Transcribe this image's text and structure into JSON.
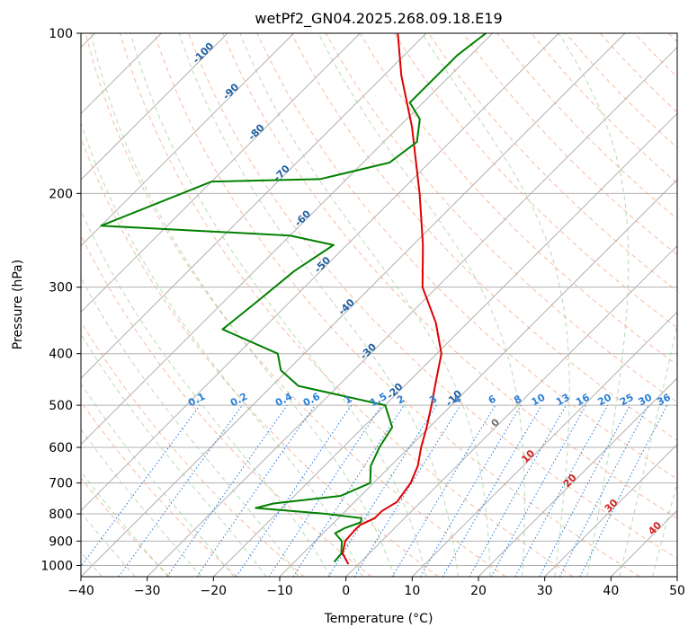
{
  "chart_data": {
    "type": "line",
    "title": "wetPf2_GN04.2025.268.09.18.E19",
    "xlabel": "Temperature (°C)",
    "ylabel": "Pressure (hPa)",
    "xlim": [
      -40,
      50
    ],
    "ylim": [
      1050,
      100
    ],
    "y_scale": "log",
    "skew": true,
    "grid": true,
    "x_ticks": [
      "−40",
      "−30",
      "−20",
      "−10",
      "0",
      "10",
      "20",
      "30",
      "40",
      "50"
    ],
    "y_ticks": [
      "100",
      "200",
      "300",
      "400",
      "500",
      "600",
      "700",
      "800",
      "900",
      "1000"
    ],
    "series": [
      {
        "color": "#e00000",
        "points": [
          {
            "p": 995,
            "t": -1.5
          },
          {
            "p": 950,
            "t": -4.0
          },
          {
            "p": 900,
            "t": -5.5
          },
          {
            "p": 860,
            "t": -5.7
          },
          {
            "p": 840,
            "t": -5.7
          },
          {
            "p": 815,
            "t": -4.5
          },
          {
            "p": 790,
            "t": -4.5
          },
          {
            "p": 760,
            "t": -3.6
          },
          {
            "p": 700,
            "t": -4.4
          },
          {
            "p": 650,
            "t": -5.9
          },
          {
            "p": 600,
            "t": -8.2
          },
          {
            "p": 550,
            "t": -10.4
          },
          {
            "p": 500,
            "t": -13.0
          },
          {
            "p": 450,
            "t": -16.0
          },
          {
            "p": 400,
            "t": -19.3
          },
          {
            "p": 350,
            "t": -24.8
          },
          {
            "p": 300,
            "t": -32.2
          },
          {
            "p": 250,
            "t": -38.5
          },
          {
            "p": 200,
            "t": -46.8
          },
          {
            "p": 150,
            "t": -58.0
          },
          {
            "p": 120,
            "t": -67.4
          },
          {
            "p": 100,
            "t": -74.3
          }
        ]
      },
      {
        "color": "#008000",
        "points": [
          {
            "p": 985,
            "t": -4.0
          },
          {
            "p": 950,
            "t": -4.2
          },
          {
            "p": 900,
            "t": -6.0
          },
          {
            "p": 870,
            "t": -8.2
          },
          {
            "p": 850,
            "t": -7.5
          },
          {
            "p": 830,
            "t": -6.0
          },
          {
            "p": 815,
            "t": -6.5
          },
          {
            "p": 800,
            "t": -12.5
          },
          {
            "p": 780,
            "t": -24.0
          },
          {
            "p": 765,
            "t": -22.0
          },
          {
            "p": 740,
            "t": -13.0
          },
          {
            "p": 700,
            "t": -10.5
          },
          {
            "p": 650,
            "t": -13.0
          },
          {
            "p": 600,
            "t": -14.5
          },
          {
            "p": 550,
            "t": -15.6
          },
          {
            "p": 500,
            "t": -20.0
          },
          {
            "p": 460,
            "t": -36.0
          },
          {
            "p": 430,
            "t": -41.0
          },
          {
            "p": 400,
            "t": -44.0
          },
          {
            "p": 360,
            "t": -56.0
          },
          {
            "p": 320,
            "t": -55.0
          },
          {
            "p": 280,
            "t": -54.0
          },
          {
            "p": 250,
            "t": -52.0
          },
          {
            "p": 240,
            "t": -60.0
          },
          {
            "p": 230,
            "t": -90.0
          },
          {
            "p": 190,
            "t": -80.0
          },
          {
            "p": 188,
            "t": -64.0
          },
          {
            "p": 175,
            "t": -56.0
          },
          {
            "p": 160,
            "t": -55.0
          },
          {
            "p": 145,
            "t": -58.0
          },
          {
            "p": 135,
            "t": -62.0
          },
          {
            "p": 120,
            "t": -62.0
          },
          {
            "p": 110,
            "t": -62.0
          },
          {
            "p": 100,
            "t": -61.0
          }
        ]
      }
    ],
    "dry_adiabat_labels": [
      "-100",
      "-90",
      "-80",
      "-70",
      "-60",
      "-50",
      "-40",
      "-30",
      "-20",
      "-10",
      "0",
      "10",
      "20",
      "30",
      "40"
    ],
    "mixing_ratio_labels": [
      "0.1",
      "0.2",
      "0.4",
      "0.6",
      "1",
      "1.5",
      "2",
      "3",
      "4",
      "6",
      "8",
      "10",
      "13",
      "16",
      "20",
      "25",
      "30",
      "36"
    ]
  }
}
